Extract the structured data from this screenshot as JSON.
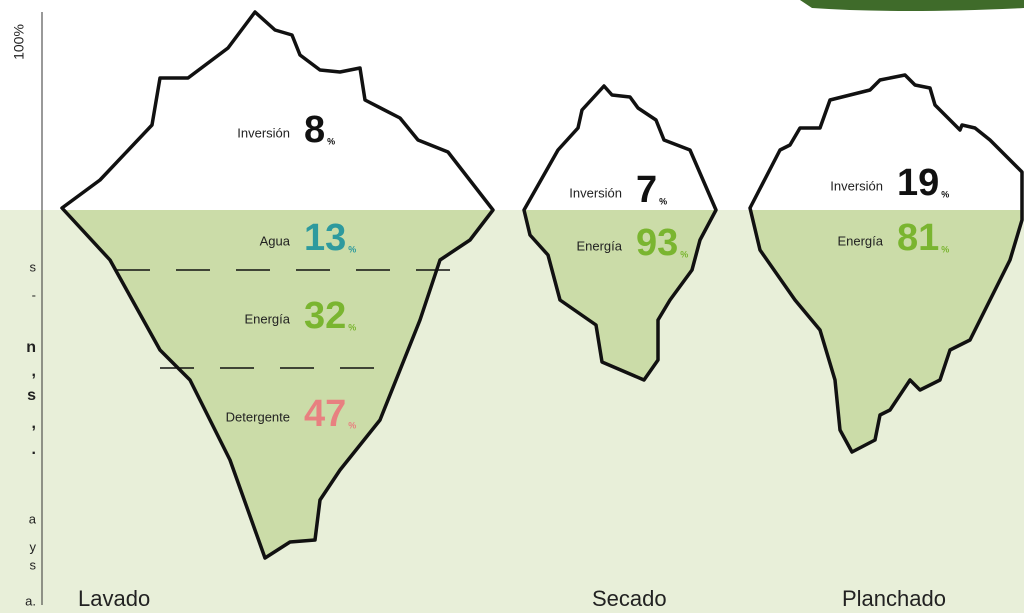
{
  "axis_label": "100%",
  "percent_sign": "%",
  "side_text": [
    "s",
    "-",
    "n",
    ",",
    "s",
    ",",
    ".",
    "a",
    "y",
    "s",
    "a."
  ],
  "icebergs": [
    {
      "label": "Lavado",
      "segments": [
        {
          "name": "Inversión",
          "value": 8,
          "color": "#111111"
        },
        {
          "name": "Agua",
          "value": 13,
          "color": "#2e9a9e"
        },
        {
          "name": "Energía",
          "value": 32,
          "color": "#7ab530"
        },
        {
          "name": "Detergente",
          "value": 47,
          "color": "#e88080"
        }
      ]
    },
    {
      "label": "Secado",
      "segments": [
        {
          "name": "Inversión",
          "value": 7,
          "color": "#111111"
        },
        {
          "name": "Energía",
          "value": 93,
          "color": "#7ab530"
        }
      ]
    },
    {
      "label": "Planchado",
      "segments": [
        {
          "name": "Inversión",
          "value": 19,
          "color": "#111111"
        },
        {
          "name": "Energía",
          "value": 81,
          "color": "#7ab530"
        }
      ]
    }
  ]
}
